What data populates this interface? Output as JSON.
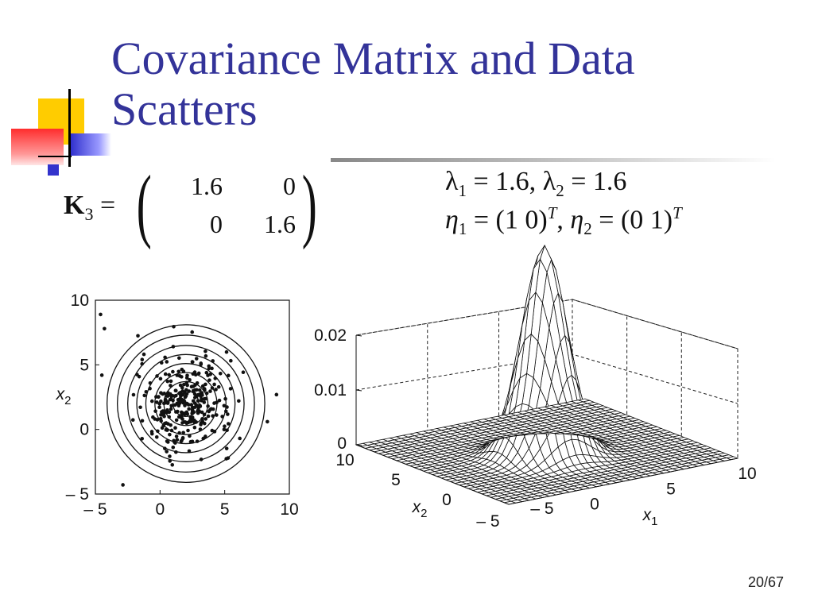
{
  "slide": {
    "title": "Covariance Matrix and Data Scatters",
    "page": "20/67"
  },
  "matrix": {
    "symbol": "K",
    "subscript": "3",
    "equals": "=",
    "cells": [
      "1.6",
      "0",
      "0",
      "1.6"
    ]
  },
  "eigen": {
    "lambda_line": {
      "l1_name": "λ",
      "l1_sub": "1",
      "l1_eq": "= 1.6,",
      "l2_name": "λ",
      "l2_sub": "2",
      "l2_eq": "= 1.6"
    },
    "eta_line": {
      "e1_name": "η",
      "e1_sub": "1",
      "e1_eq": "= (1 0)",
      "e1_sup": "T",
      "sep": ",",
      "e2_name": "η",
      "e2_sub": "2",
      "e2_eq": "= (0 1)",
      "e2_sup": "T"
    }
  },
  "chart_data": [
    {
      "type": "scatter",
      "xlim": [
        -5,
        10
      ],
      "ylim": [
        -5,
        10
      ],
      "x_ticks": [
        "– 5",
        "0",
        "5",
        "10"
      ],
      "y_ticks": [
        "– 5",
        "0",
        "5",
        "10"
      ],
      "ylabel_var": "x",
      "ylabel_sub": "2",
      "contours": {
        "center": [
          2,
          2
        ],
        "radii": [
          1.0,
          1.7,
          2.4,
          3.1,
          3.8,
          4.5,
          5.3,
          6.1
        ]
      },
      "points_center": [
        2,
        2
      ],
      "points_std": 1.8
    },
    {
      "type": "surface",
      "z_ticks": [
        "0.02",
        "0.01",
        "0"
      ],
      "x1_ticks": [
        "– 5",
        "0",
        "5",
        "10"
      ],
      "x2_ticks": [
        "10",
        "5",
        "0",
        "– 5"
      ],
      "x1_label_var": "x",
      "x1_label_sub": "1",
      "x2_label_var": "x",
      "x2_label_sub": "2",
      "range": [
        -5,
        10
      ],
      "mean": [
        2,
        2
      ],
      "variance": 1.6
    }
  ]
}
